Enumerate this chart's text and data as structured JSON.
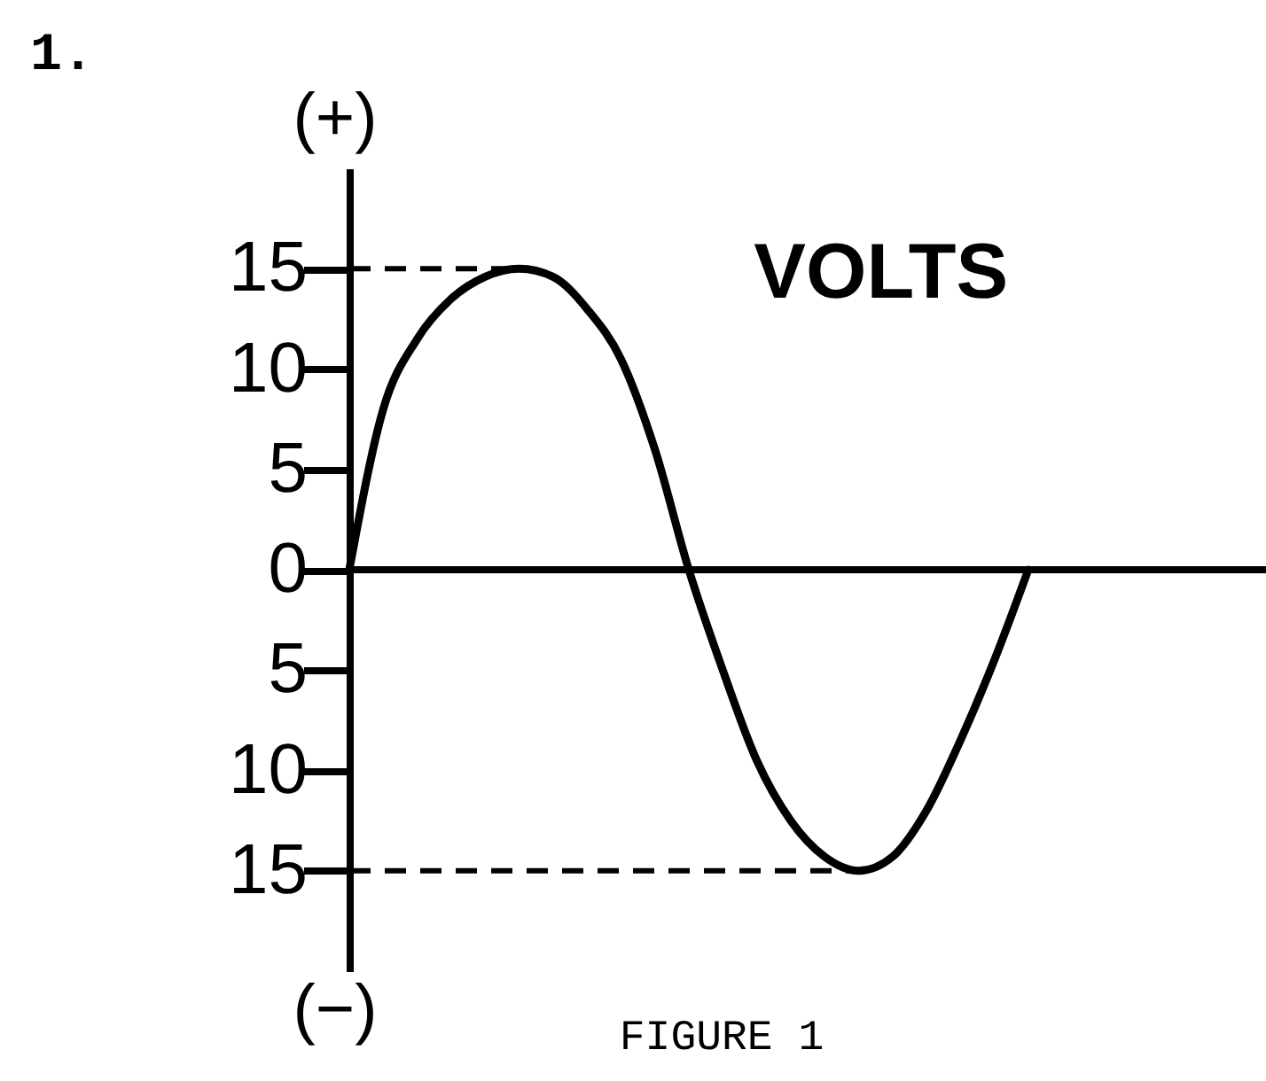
{
  "chart_data": {
    "type": "line",
    "title": "1.",
    "ylabel": "VOLTS",
    "annotations": [
      "(+)",
      "(−)",
      "FIGURE 1"
    ],
    "categories": [
      null,
      null,
      null,
      null,
      null,
      null,
      null,
      null,
      null,
      null,
      null,
      null,
      null,
      null,
      null,
      null,
      null,
      null,
      null,
      null,
      null,
      null,
      null,
      null,
      null,
      null,
      null,
      null
    ],
    "series": [
      {
        "color": "#000000",
        "values": [
          0,
          8,
          11.5,
          13.5,
          14.6,
          15,
          14.6,
          13,
          10.5,
          6,
          0,
          -5,
          -9.5,
          -12.5,
          -14.3,
          -15,
          -14.3,
          -12,
          -8.5,
          -4.5,
          0,
          null,
          null,
          null,
          null,
          null,
          null,
          null
        ]
      }
    ],
    "ylim": [
      -20,
      20
    ],
    "yticks": [
      {
        "value": -15,
        "label": "15"
      },
      {
        "value": -10,
        "label": "10"
      },
      {
        "value": -5,
        "label": "5"
      },
      0,
      5,
      10,
      15
    ],
    "ref_lines": [
      {
        "axis": "y",
        "value": 0,
        "line_style": "solid"
      },
      {
        "axis": "y",
        "value": 15,
        "line_style": "dashed"
      },
      {
        "axis": "y",
        "value": -15,
        "line_style": "dashed"
      }
    ],
    "tick_labels": "y",
    "grid": false,
    "marker": "none",
    "line_style": "solid"
  }
}
